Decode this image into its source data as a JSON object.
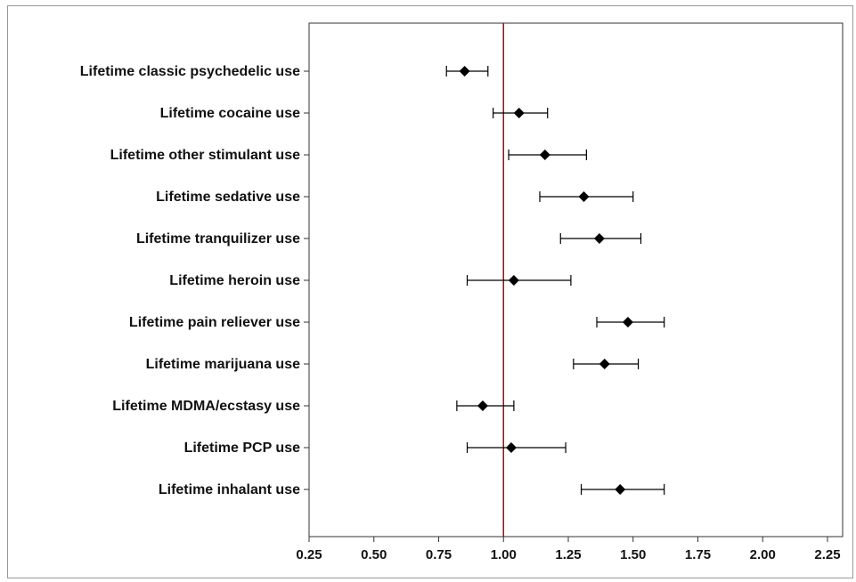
{
  "chart_data": {
    "type": "scatter",
    "subtype": "forest-plot",
    "orientation": "horizontal",
    "title": "",
    "xlabel": "",
    "ylabel": "",
    "xlim": [
      0.25,
      2.3
    ],
    "xticks": [
      "0.25",
      "0.50",
      "0.75",
      "1.00",
      "1.25",
      "1.50",
      "1.75",
      "2.00",
      "2.25"
    ],
    "reference_line": {
      "x": 1.0,
      "color": "#c00000"
    },
    "grid": false,
    "marker": "diamond",
    "marker_color": "#000000",
    "categories": [
      {
        "label": "Lifetime classic psychedelic use",
        "estimate": 0.85,
        "lower": 0.78,
        "upper": 0.94
      },
      {
        "label": "Lifetime cocaine use",
        "estimate": 1.06,
        "lower": 0.96,
        "upper": 1.17
      },
      {
        "label": "Lifetime other stimulant use",
        "estimate": 1.16,
        "lower": 1.02,
        "upper": 1.32
      },
      {
        "label": "Lifetime sedative use",
        "estimate": 1.31,
        "lower": 1.14,
        "upper": 1.5
      },
      {
        "label": "Lifetime tranquilizer use",
        "estimate": 1.37,
        "lower": 1.22,
        "upper": 1.53
      },
      {
        "label": "Lifetime heroin use",
        "estimate": 1.04,
        "lower": 0.86,
        "upper": 1.26
      },
      {
        "label": "Lifetime pain reliever use",
        "estimate": 1.48,
        "lower": 1.36,
        "upper": 1.62
      },
      {
        "label": "Lifetime marijuana use",
        "estimate": 1.39,
        "lower": 1.27,
        "upper": 1.52
      },
      {
        "label": "Lifetime MDMA/ecstasy use",
        "estimate": 0.92,
        "lower": 0.82,
        "upper": 1.04
      },
      {
        "label": "Lifetime PCP use",
        "estimate": 1.03,
        "lower": 0.86,
        "upper": 1.24
      },
      {
        "label": "Lifetime inhalant use",
        "estimate": 1.45,
        "lower": 1.3,
        "upper": 1.62
      }
    ]
  }
}
